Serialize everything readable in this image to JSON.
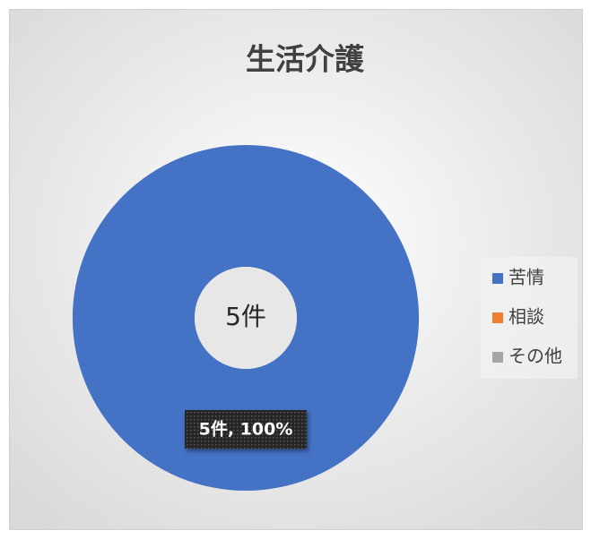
{
  "chart_data": {
    "type": "donut",
    "title": "生活介護",
    "categories": [
      "苦情",
      "相談",
      "その他"
    ],
    "values": [
      5,
      0,
      0
    ],
    "value_labels": [
      "5件, 100%",
      null,
      null
    ],
    "colors": [
      "#4472c4",
      "#ed7d31",
      "#a5a5a5"
    ],
    "center_label": "5件",
    "legend": "right"
  }
}
